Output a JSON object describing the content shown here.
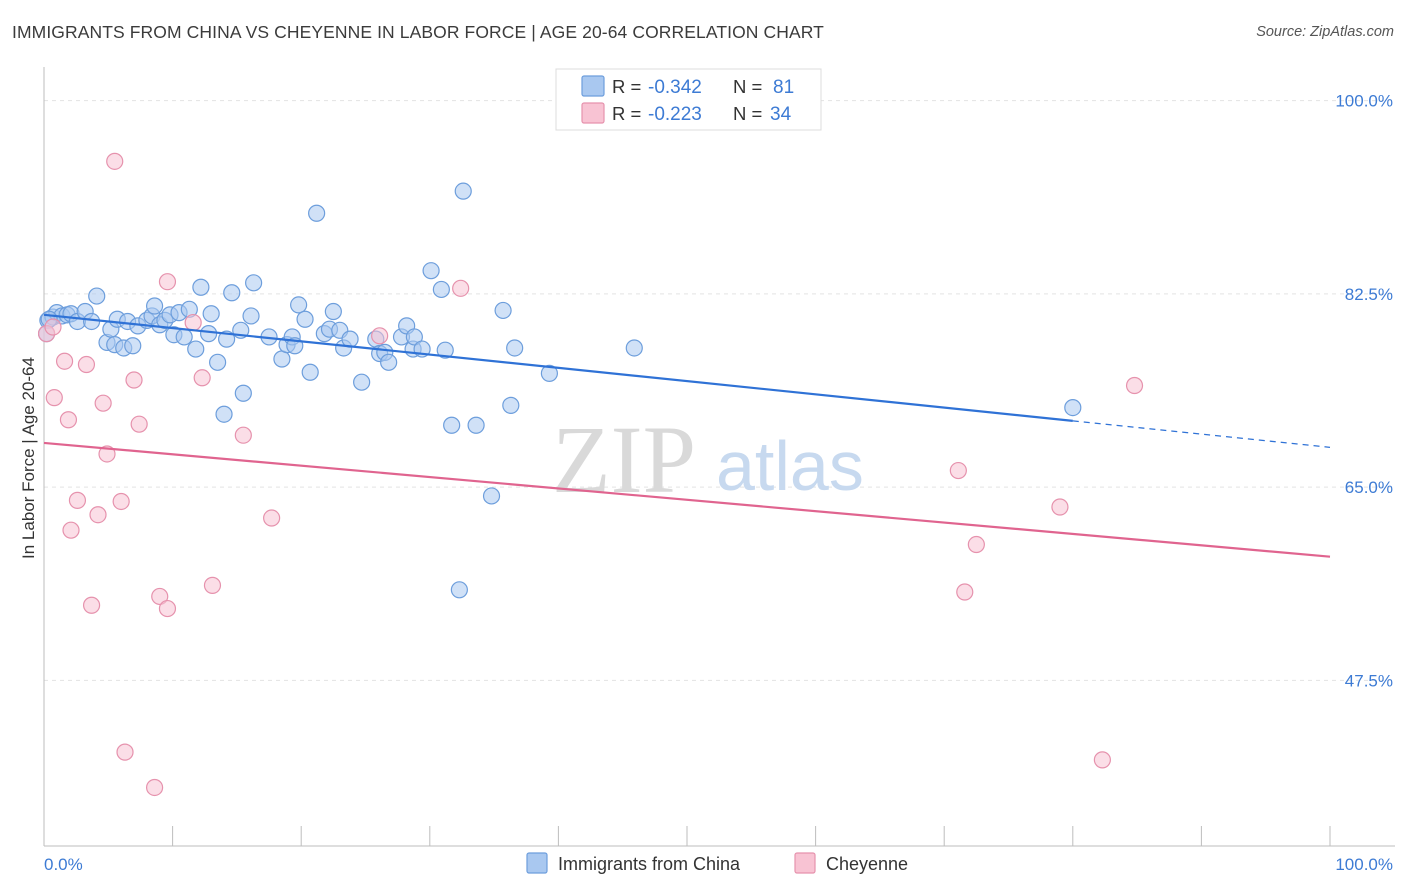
{
  "header": {
    "title": "IMMIGRANTS FROM CHINA VS CHEYENNE IN LABOR FORCE | AGE 20-64 CORRELATION CHART",
    "source": "Source: ZipAtlas.com"
  },
  "legend": {
    "rows": [
      {
        "r_label": "R =",
        "r_value": "-0.342",
        "n_label": "N =",
        "n_value": "81",
        "color": "#a9c8f0",
        "stroke": "#6d9edc"
      },
      {
        "r_label": "R =",
        "r_value": "-0.223",
        "n_label": "N =",
        "n_value": "34",
        "color": "#f8c3d3",
        "stroke": "#e692ad"
      }
    ]
  },
  "watermark": {
    "zip": "ZIP",
    "atlas": "atlas"
  },
  "chart_data": {
    "type": "scatter",
    "title": "IMMIGRANTS FROM CHINA VS CHEYENNE IN LABOR FORCE | AGE 20-64 CORRELATION CHART",
    "xlabel": "",
    "ylabel": "In Labor Force | Age 20-64",
    "xlim": [
      0,
      100
    ],
    "ylim": [
      32.5,
      102.5
    ],
    "x_tick_labels": [
      "0.0%",
      "100.0%"
    ],
    "y_ticks": [
      {
        "value": 100,
        "label": "100.0%"
      },
      {
        "value": 82.5,
        "label": "82.5%"
      },
      {
        "value": 65,
        "label": "65.0%"
      },
      {
        "value": 47.5,
        "label": "47.5%"
      }
    ],
    "grid": true,
    "series": [
      {
        "name": "Immigrants from China",
        "color": "#a9c8f0",
        "stroke": "#6d9edc",
        "line_color": "#2f72d6",
        "trend": {
          "x0": 0,
          "y0": 80.6,
          "x1": 80,
          "y1": 71.0,
          "dash_to_x": 100,
          "dash_to_y": 68.6
        },
        "points": [
          [
            0.3,
            80.1
          ],
          [
            0.7,
            80.4
          ],
          [
            1.0,
            80.8
          ],
          [
            1.4,
            80.5
          ],
          [
            1.8,
            80.6
          ],
          [
            2.1,
            80.7
          ],
          [
            2.6,
            80.0
          ],
          [
            3.2,
            80.9
          ],
          [
            3.7,
            80.0
          ],
          [
            4.1,
            82.3
          ],
          [
            4.9,
            78.1
          ],
          [
            5.2,
            79.3
          ],
          [
            5.5,
            77.9
          ],
          [
            5.7,
            80.2
          ],
          [
            6.2,
            77.6
          ],
          [
            6.5,
            80.0
          ],
          [
            6.9,
            77.8
          ],
          [
            7.3,
            79.6
          ],
          [
            8.0,
            80.1
          ],
          [
            8.4,
            80.5
          ],
          [
            8.6,
            81.4
          ],
          [
            9.0,
            79.7
          ],
          [
            9.4,
            80.1
          ],
          [
            9.8,
            80.6
          ],
          [
            10.1,
            78.8
          ],
          [
            10.5,
            80.8
          ],
          [
            10.9,
            78.6
          ],
          [
            11.3,
            81.1
          ],
          [
            11.8,
            77.5
          ],
          [
            12.2,
            83.1
          ],
          [
            12.8,
            78.9
          ],
          [
            13.0,
            80.7
          ],
          [
            13.5,
            76.3
          ],
          [
            14.0,
            71.6
          ],
          [
            14.2,
            78.4
          ],
          [
            14.6,
            82.6
          ],
          [
            15.3,
            79.2
          ],
          [
            15.5,
            73.5
          ],
          [
            16.1,
            80.5
          ],
          [
            16.3,
            83.5
          ],
          [
            17.5,
            78.6
          ],
          [
            18.5,
            76.6
          ],
          [
            18.9,
            77.9
          ],
          [
            19.3,
            78.6
          ],
          [
            19.5,
            77.8
          ],
          [
            19.8,
            81.5
          ],
          [
            20.3,
            80.2
          ],
          [
            20.7,
            75.4
          ],
          [
            21.2,
            89.8
          ],
          [
            21.8,
            78.9
          ],
          [
            22.5,
            80.9
          ],
          [
            22.2,
            79.3
          ],
          [
            23.0,
            79.2
          ],
          [
            23.3,
            77.6
          ],
          [
            23.8,
            78.4
          ],
          [
            24.7,
            74.5
          ],
          [
            25.8,
            78.4
          ],
          [
            26.1,
            77.1
          ],
          [
            26.5,
            77.2
          ],
          [
            26.8,
            76.3
          ],
          [
            27.8,
            78.6
          ],
          [
            28.2,
            79.6
          ],
          [
            28.7,
            77.5
          ],
          [
            28.8,
            78.6
          ],
          [
            29.4,
            77.5
          ],
          [
            30.1,
            84.6
          ],
          [
            30.9,
            82.9
          ],
          [
            31.2,
            77.4
          ],
          [
            31.7,
            70.6
          ],
          [
            32.6,
            91.8
          ],
          [
            33.6,
            70.6
          ],
          [
            34.8,
            64.2
          ],
          [
            35.7,
            81.0
          ],
          [
            36.3,
            72.4
          ],
          [
            36.6,
            77.6
          ],
          [
            39.3,
            75.3
          ],
          [
            45.9,
            77.6
          ],
          [
            80.0,
            72.2
          ],
          [
            32.3,
            55.7
          ],
          [
            0.4,
            80.2
          ],
          [
            0.2,
            78.9
          ]
        ]
      },
      {
        "name": "Cheyenne",
        "color": "#f8c3d3",
        "stroke": "#e692ad",
        "line_color": "#e0648f",
        "trend": {
          "x0": 0,
          "y0": 69.0,
          "x1": 100,
          "y1": 58.7
        },
        "points": [
          [
            0.2,
            78.9
          ],
          [
            0.7,
            79.5
          ],
          [
            0.8,
            73.1
          ],
          [
            1.6,
            76.4
          ],
          [
            1.9,
            71.1
          ],
          [
            2.1,
            61.1
          ],
          [
            2.6,
            63.8
          ],
          [
            3.3,
            76.1
          ],
          [
            3.7,
            54.3
          ],
          [
            4.2,
            62.5
          ],
          [
            4.6,
            72.6
          ],
          [
            4.9,
            68.0
          ],
          [
            6.0,
            63.7
          ],
          [
            6.3,
            41.0
          ],
          [
            7.0,
            74.7
          ],
          [
            7.4,
            70.7
          ],
          [
            8.6,
            37.8
          ],
          [
            9.0,
            55.1
          ],
          [
            9.6,
            83.6
          ],
          [
            9.6,
            54.0
          ],
          [
            11.6,
            79.9
          ],
          [
            12.3,
            74.9
          ],
          [
            13.1,
            56.1
          ],
          [
            15.5,
            69.7
          ],
          [
            17.7,
            62.2
          ],
          [
            26.1,
            78.7
          ],
          [
            32.4,
            83.0
          ],
          [
            5.5,
            94.5
          ],
          [
            84.8,
            74.2
          ],
          [
            71.6,
            55.5
          ],
          [
            71.1,
            66.5
          ],
          [
            72.5,
            59.8
          ],
          [
            79.0,
            63.2
          ],
          [
            82.3,
            40.3
          ]
        ]
      }
    ],
    "legend_position": "top-center"
  }
}
